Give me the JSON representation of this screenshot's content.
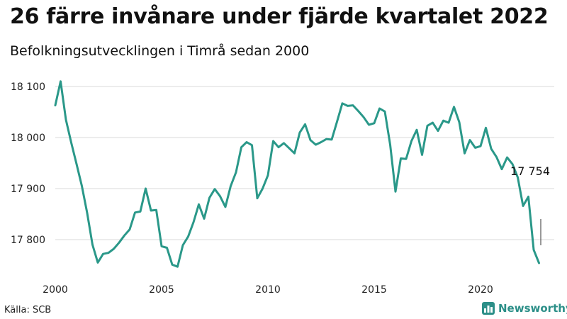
{
  "title": "26 färre invånare under fjärde kvartalet 2022",
  "subtitle": "Befolkningsutvecklingen i Timrå sedan 2000",
  "source": "Källa: SCB",
  "brand": {
    "name": "Newsworthy",
    "icon": "newsworthy-logo-icon"
  },
  "colors": {
    "line": "#2a9889",
    "grid": "#d9d9d9",
    "brand": "#2c8f88"
  },
  "chart_data": {
    "type": "line",
    "title": "26 färre invånare under fjärde kvartalet 2022",
    "subtitle": "Befolkningsutvecklingen i Timrå sedan 2000",
    "xlabel": "",
    "ylabel": "",
    "xlim": [
      2000,
      2023
    ],
    "ylim": [
      17740,
      18120
    ],
    "grid": true,
    "x_ticks": [
      2000,
      2005,
      2010,
      2015,
      2020
    ],
    "x_tick_labels": [
      "2000",
      "2005",
      "2010",
      "2015",
      "2020"
    ],
    "y_ticks": [
      17800,
      17900,
      18000,
      18100
    ],
    "y_tick_labels": [
      "17 800",
      "17 900",
      "18 000",
      "18 100"
    ],
    "annotation": {
      "label": "17 754",
      "x": 2022.75,
      "y": 17754
    },
    "x": [
      2000.0,
      2000.25,
      2000.5,
      2000.75,
      2001.0,
      2001.25,
      2001.5,
      2001.75,
      2002.0,
      2002.25,
      2002.5,
      2002.75,
      2003.0,
      2003.25,
      2003.5,
      2003.75,
      2004.0,
      2004.25,
      2004.5,
      2004.75,
      2005.0,
      2005.25,
      2005.5,
      2005.75,
      2006.0,
      2006.25,
      2006.5,
      2006.75,
      2007.0,
      2007.25,
      2007.5,
      2007.75,
      2008.0,
      2008.25,
      2008.5,
      2008.75,
      2009.0,
      2009.25,
      2009.5,
      2009.75,
      2010.0,
      2010.25,
      2010.5,
      2010.75,
      2011.0,
      2011.25,
      2011.5,
      2011.75,
      2012.0,
      2012.25,
      2012.5,
      2012.75,
      2013.0,
      2013.25,
      2013.5,
      2013.75,
      2014.0,
      2014.25,
      2014.5,
      2014.75,
      2015.0,
      2015.25,
      2015.5,
      2015.75,
      2016.0,
      2016.25,
      2016.5,
      2016.75,
      2017.0,
      2017.25,
      2017.5,
      2017.75,
      2018.0,
      2018.25,
      2018.5,
      2018.75,
      2019.0,
      2019.25,
      2019.5,
      2019.75,
      2020.0,
      2020.25,
      2020.5,
      2020.75,
      2021.0,
      2021.25,
      2021.5,
      2021.75,
      2022.0,
      2022.25,
      2022.5,
      2022.75
    ],
    "series": [
      {
        "values": [
          18063,
          18110,
          18035,
          17990,
          17948,
          17905,
          17852,
          17790,
          17755,
          17772,
          17774,
          17782,
          17794,
          17808,
          17820,
          17853,
          17855,
          17900,
          17857,
          17858,
          17787,
          17784,
          17751,
          17747,
          17789,
          17806,
          17834,
          17869,
          17841,
          17882,
          17899,
          17885,
          17864,
          17905,
          17932,
          17981,
          17991,
          17985,
          17881,
          17900,
          17926,
          17993,
          17981,
          17989,
          17979,
          17969,
          18010,
          18026,
          17995,
          17986,
          17991,
          17997,
          17996,
          18031,
          18067,
          18062,
          18063,
          18052,
          18040,
          18025,
          18028,
          18057,
          18051,
          17986,
          17894,
          17959,
          17958,
          17993,
          18015,
          17966,
          18023,
          18029,
          18013,
          18033,
          18029,
          18060,
          18030,
          17969,
          17995,
          17980,
          17983,
          18019,
          17978,
          17962,
          17938,
          17961,
          17948,
          17922,
          17866,
          17884,
          17780,
          17754
        ]
      }
    ]
  }
}
